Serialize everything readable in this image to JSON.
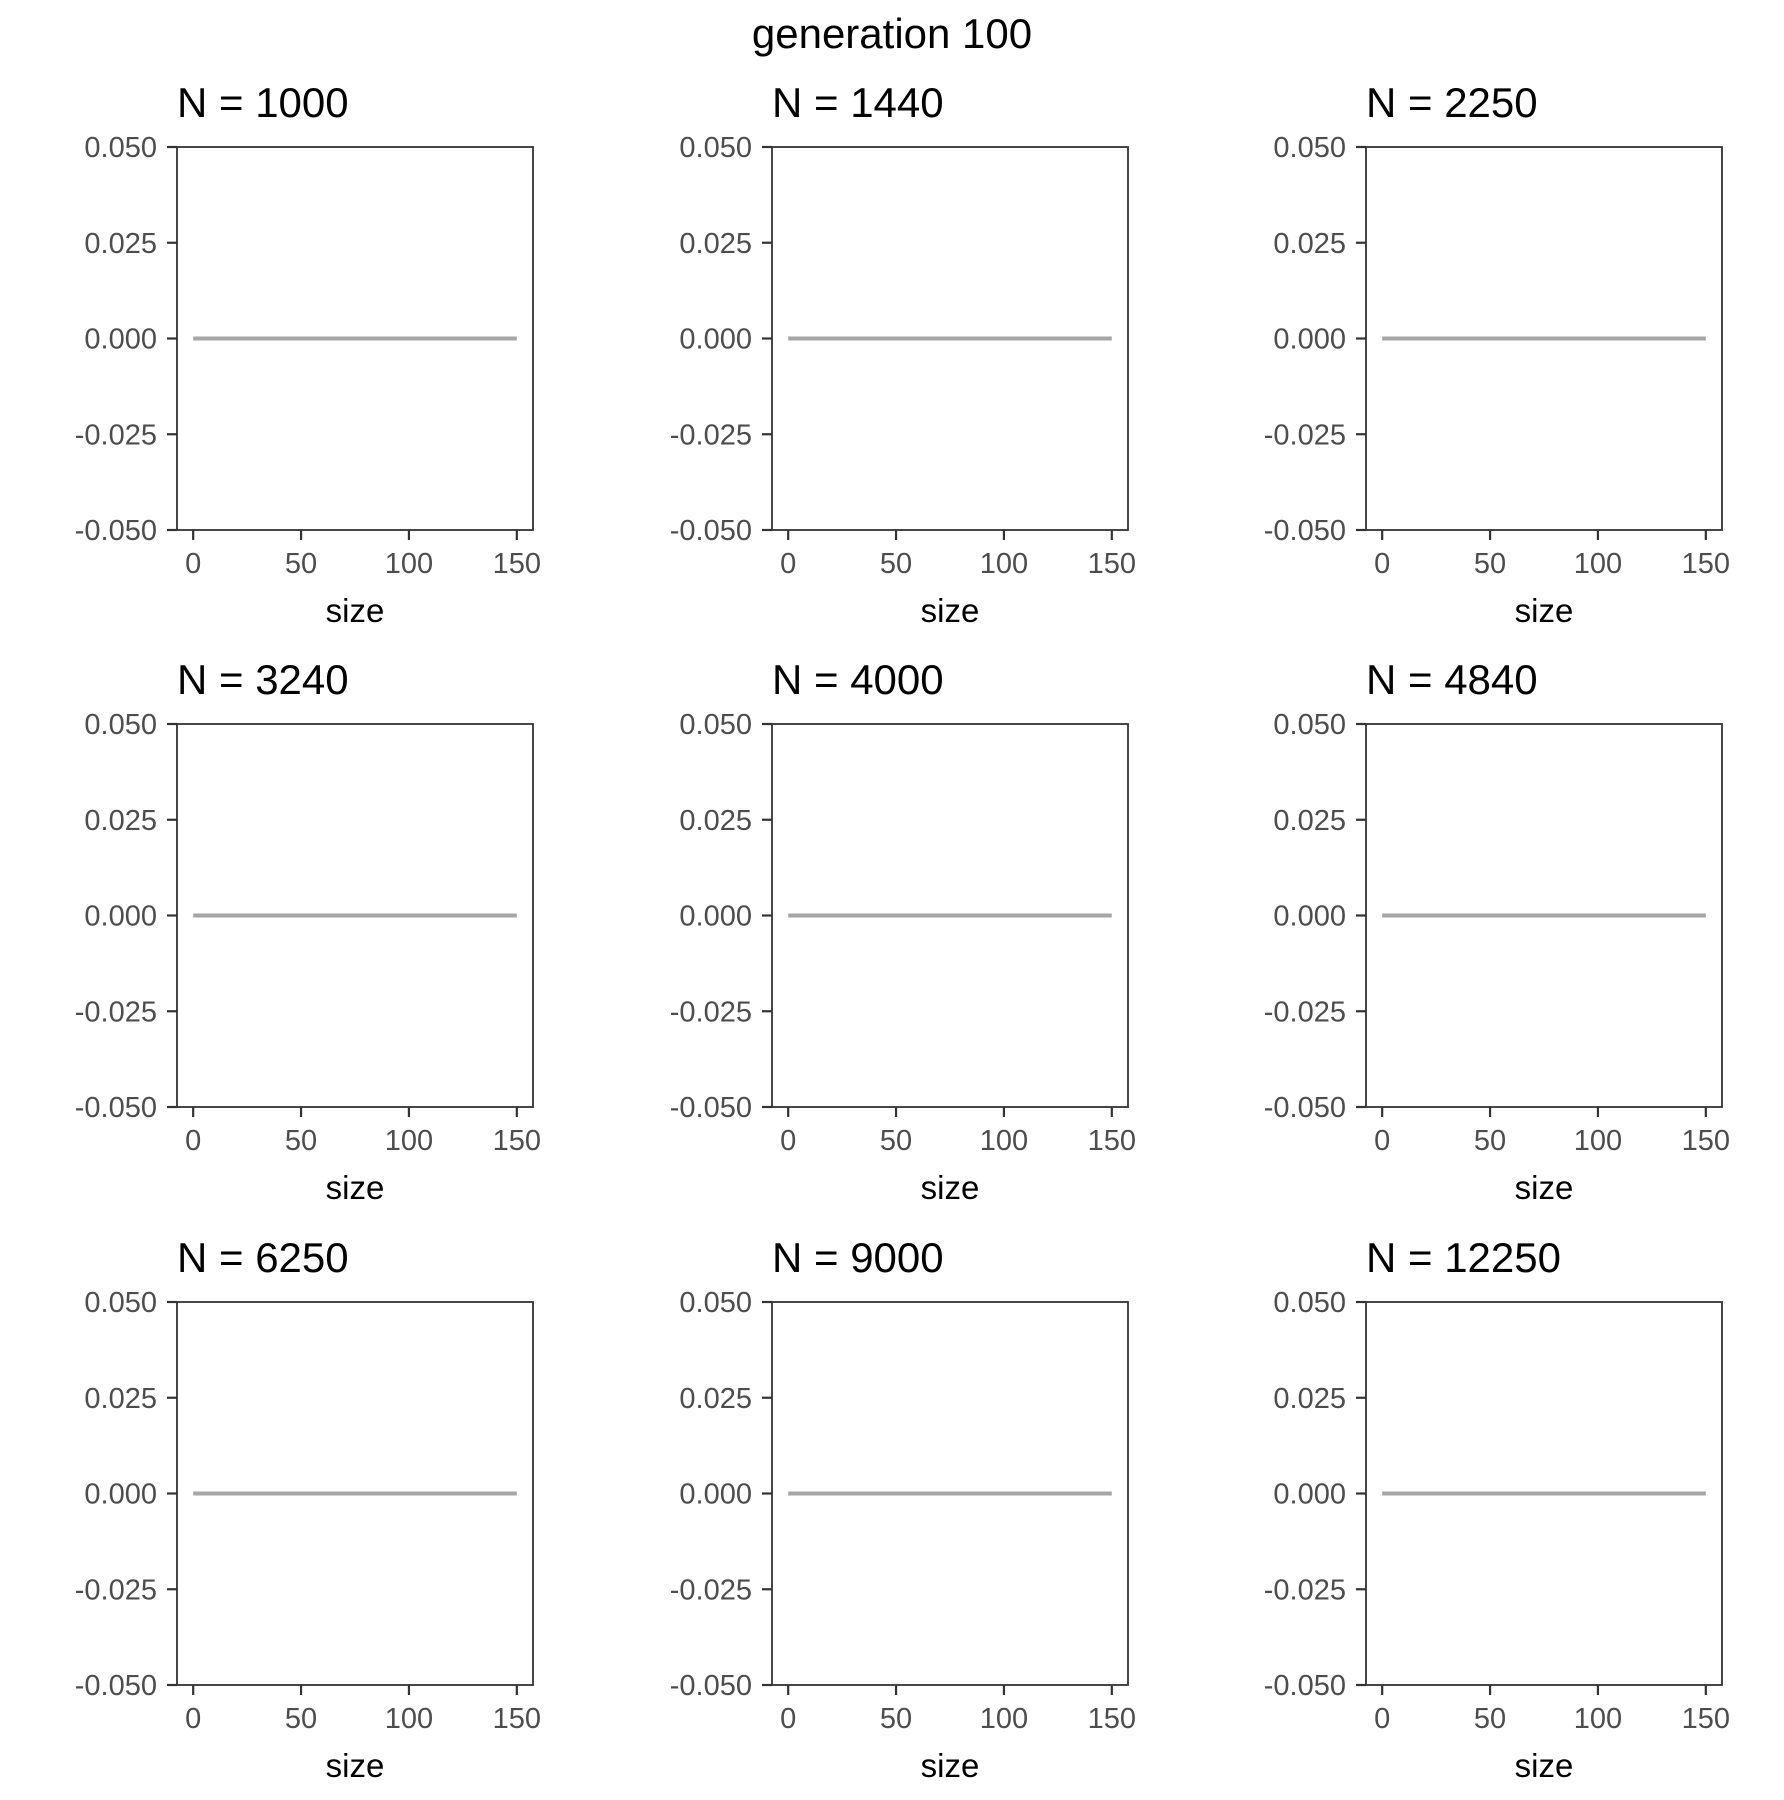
{
  "chart_data": {
    "type": "line",
    "title": "generation 100",
    "xlabel": "size",
    "ylabel": "",
    "xlim": [
      -7.5,
      157.5
    ],
    "ylim": [
      -0.05,
      0.05
    ],
    "x_ticks": [
      0,
      50,
      100,
      150
    ],
    "x_tick_labels": [
      "0",
      "50",
      "100",
      "150"
    ],
    "y_ticks": [
      0.05,
      0.025,
      0,
      -0.025,
      -0.05
    ],
    "y_tick_labels": [
      "0.050",
      "0.025",
      "0.000",
      "-0.025",
      "-0.050"
    ],
    "grid": false,
    "legend": "none",
    "line_color": "#a6a6a6",
    "panels": [
      {
        "title": "N = 1000",
        "series": [
          {
            "x": [
              0,
              150
            ],
            "y": [
              0,
              0
            ]
          }
        ]
      },
      {
        "title": "N = 1440",
        "series": [
          {
            "x": [
              0,
              150
            ],
            "y": [
              0,
              0
            ]
          }
        ]
      },
      {
        "title": "N = 2250",
        "series": [
          {
            "x": [
              0,
              150
            ],
            "y": [
              0,
              0
            ]
          }
        ]
      },
      {
        "title": "N = 3240",
        "series": [
          {
            "x": [
              0,
              150
            ],
            "y": [
              0,
              0
            ]
          }
        ]
      },
      {
        "title": "N = 4000",
        "series": [
          {
            "x": [
              0,
              150
            ],
            "y": [
              0,
              0
            ]
          }
        ]
      },
      {
        "title": "N = 4840",
        "series": [
          {
            "x": [
              0,
              150
            ],
            "y": [
              0,
              0
            ]
          }
        ]
      },
      {
        "title": "N = 6250",
        "series": [
          {
            "x": [
              0,
              150
            ],
            "y": [
              0,
              0
            ]
          }
        ]
      },
      {
        "title": "N = 9000",
        "series": [
          {
            "x": [
              0,
              150
            ],
            "y": [
              0,
              0
            ]
          }
        ]
      },
      {
        "title": "N = 12250",
        "series": [
          {
            "x": [
              0,
              150
            ],
            "y": [
              0,
              0
            ]
          }
        ]
      }
    ]
  }
}
